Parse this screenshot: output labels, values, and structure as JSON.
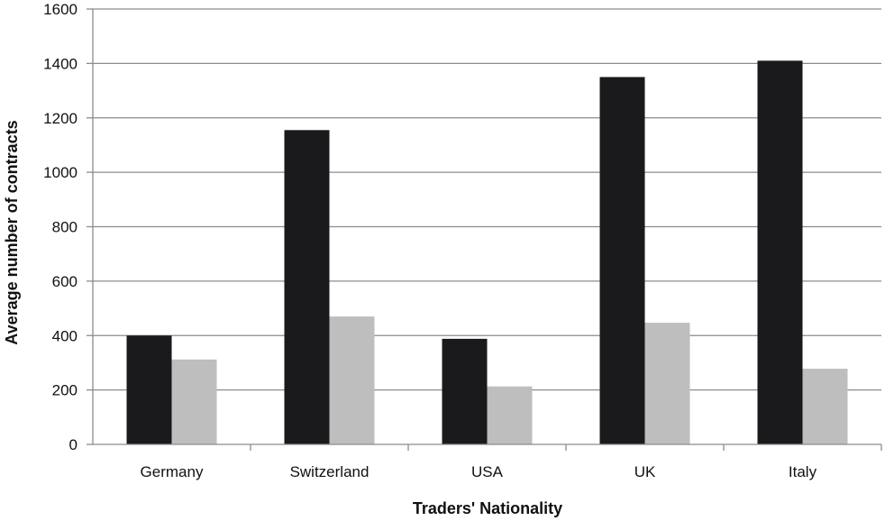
{
  "chart_data": {
    "type": "bar",
    "title": "",
    "xlabel": "Traders' Nationality",
    "ylabel": "Average number of contracts",
    "categories": [
      "Germany",
      "Switzerland",
      "USA",
      "UK",
      "Italy"
    ],
    "series": [
      {
        "values": [
          400,
          1155,
          388,
          1350,
          1410
        ],
        "color": "#1a1a1d"
      },
      {
        "values": [
          312,
          470,
          213,
          447,
          278
        ],
        "color": "#bebebe"
      }
    ],
    "ylim": [
      0,
      1600
    ],
    "yticks": [
      0,
      200,
      400,
      600,
      800,
      1000,
      1200,
      1400,
      1600
    ],
    "grid": true,
    "legend": "none"
  }
}
